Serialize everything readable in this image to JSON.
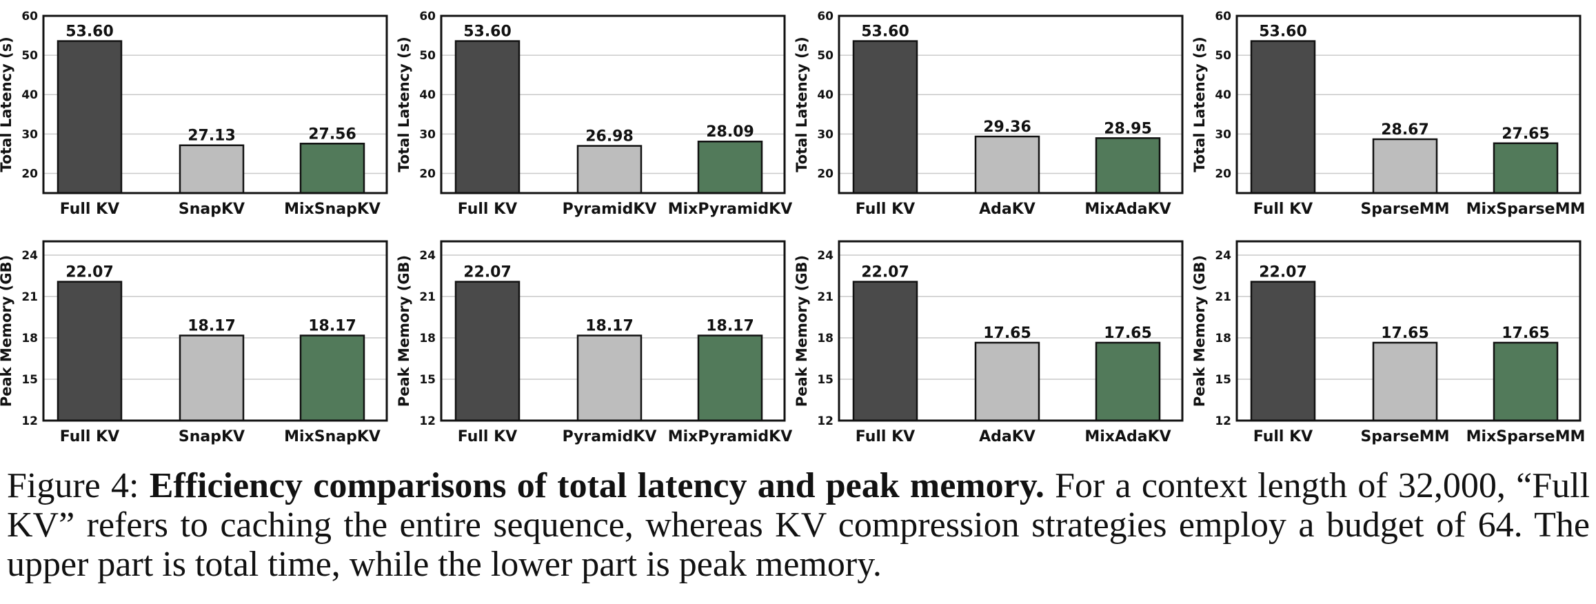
{
  "colors": {
    "full_kv": "#4a4a4a",
    "baseline": "#bdbdbd",
    "mix": "#527a5a",
    "grid": "#c9c9c9"
  },
  "chart_data": [
    {
      "type": "bar",
      "row": "latency",
      "ylabel": "Total Latency (s)",
      "ylim": [
        15,
        60
      ],
      "yticks": [
        20,
        30,
        40,
        50,
        60
      ],
      "grid": true,
      "categories": [
        "Full KV",
        "SnapKV",
        "MixSnapKV"
      ],
      "values": [
        53.6,
        27.13,
        27.56
      ],
      "value_labels": [
        "53.60",
        "27.13",
        "27.56"
      ]
    },
    {
      "type": "bar",
      "row": "latency",
      "ylabel": "Total Latency (s)",
      "ylim": [
        15,
        60
      ],
      "yticks": [
        20,
        30,
        40,
        50,
        60
      ],
      "grid": true,
      "categories": [
        "Full KV",
        "PyramidKV",
        "MixPyramidKV"
      ],
      "values": [
        53.6,
        26.98,
        28.09
      ],
      "value_labels": [
        "53.60",
        "26.98",
        "28.09"
      ]
    },
    {
      "type": "bar",
      "row": "latency",
      "ylabel": "Total Latency (s)",
      "ylim": [
        15,
        60
      ],
      "yticks": [
        20,
        30,
        40,
        50,
        60
      ],
      "grid": true,
      "categories": [
        "Full KV",
        "AdaKV",
        "MixAdaKV"
      ],
      "values": [
        53.6,
        29.36,
        28.95
      ],
      "value_labels": [
        "53.60",
        "29.36",
        "28.95"
      ]
    },
    {
      "type": "bar",
      "row": "latency",
      "ylabel": "Total Latency (s)",
      "ylim": [
        15,
        60
      ],
      "yticks": [
        20,
        30,
        40,
        50,
        60
      ],
      "grid": true,
      "categories": [
        "Full KV",
        "SparseMM",
        "MixSparseMM"
      ],
      "values": [
        53.6,
        28.67,
        27.65
      ],
      "value_labels": [
        "53.60",
        "28.67",
        "27.65"
      ]
    },
    {
      "type": "bar",
      "row": "memory",
      "ylabel": "Peak Memory (GB)",
      "ylim": [
        12,
        25
      ],
      "yticks": [
        12,
        15,
        18,
        21,
        24
      ],
      "grid": true,
      "categories": [
        "Full KV",
        "SnapKV",
        "MixSnapKV"
      ],
      "values": [
        22.07,
        18.17,
        18.17
      ],
      "value_labels": [
        "22.07",
        "18.17",
        "18.17"
      ]
    },
    {
      "type": "bar",
      "row": "memory",
      "ylabel": "Peak Memory (GB)",
      "ylim": [
        12,
        25
      ],
      "yticks": [
        12,
        15,
        18,
        21,
        24
      ],
      "grid": true,
      "categories": [
        "Full KV",
        "PyramidKV",
        "MixPyramidKV"
      ],
      "values": [
        22.07,
        18.17,
        18.17
      ],
      "value_labels": [
        "22.07",
        "18.17",
        "18.17"
      ]
    },
    {
      "type": "bar",
      "row": "memory",
      "ylabel": "Peak Memory (GB)",
      "ylim": [
        12,
        25
      ],
      "yticks": [
        12,
        15,
        18,
        21,
        24
      ],
      "grid": true,
      "categories": [
        "Full KV",
        "AdaKV",
        "MixAdaKV"
      ],
      "values": [
        22.07,
        17.65,
        17.65
      ],
      "value_labels": [
        "22.07",
        "17.65",
        "17.65"
      ]
    },
    {
      "type": "bar",
      "row": "memory",
      "ylabel": "Peak Memory (GB)",
      "ylim": [
        12,
        25
      ],
      "yticks": [
        12,
        15,
        18,
        21,
        24
      ],
      "grid": true,
      "categories": [
        "Full KV",
        "SparseMM",
        "MixSparseMM"
      ],
      "values": [
        22.07,
        17.65,
        17.65
      ],
      "value_labels": [
        "22.07",
        "17.65",
        "17.65"
      ]
    }
  ],
  "caption": {
    "label": "Figure 4:",
    "bold": "Efficiency comparisons of total latency and peak memory.",
    "text": "For a context length of 32,000, “Full KV” refers to caching the entire sequence, whereas KV compression strategies employ a budget of 64. The upper part is total time, while the lower part is peak memory."
  }
}
